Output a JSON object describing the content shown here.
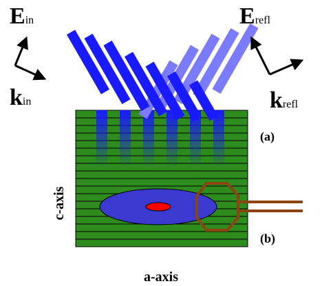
{
  "labels": {
    "e_in": {
      "symbol": "E",
      "sub": "in"
    },
    "k_in": {
      "symbol": "k",
      "sub": "in"
    },
    "e_refl": {
      "symbol": "E",
      "sub": "refl"
    },
    "k_refl": {
      "symbol": "k",
      "sub": "refl"
    }
  },
  "markers": [
    "(a)",
    "(b)"
  ],
  "axes": {
    "vertical": "c-axis",
    "horizontal": "a-axis"
  }
}
